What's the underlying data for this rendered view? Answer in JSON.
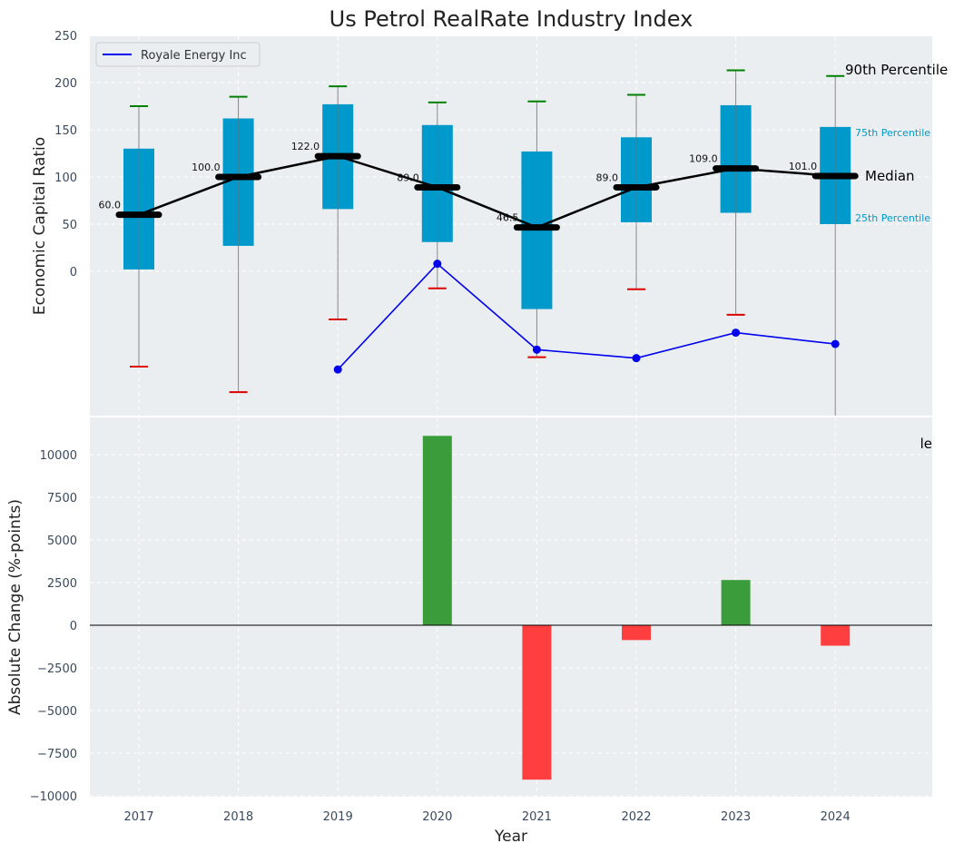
{
  "chart_data": [
    {
      "type": "boxplot",
      "title": "Us Petrol RealRate Industry Index",
      "ylabel": "Economic Capital Ratio",
      "xlabel": "",
      "yticks": [
        "0",
        "50",
        "100",
        "150",
        "200",
        "250"
      ],
      "grid": true,
      "legend": {
        "position": "top-left",
        "label": "Royale Energy Inc"
      },
      "categories": [
        "2017",
        "2018",
        "2019",
        "2020",
        "2021",
        "2022",
        "2023",
        "2024"
      ],
      "boxes": [
        {
          "year": "2017",
          "q1": 2,
          "q3": 130,
          "median": 60,
          "p10": -101,
          "p90": 175,
          "label": "60.0"
        },
        {
          "year": "2018",
          "q1": 27,
          "q3": 162,
          "median": 100,
          "p10": -128,
          "p90": 185,
          "label": "100.0"
        },
        {
          "year": "2019",
          "q1": 66,
          "q3": 177,
          "median": 122,
          "p10": -51,
          "p90": 196,
          "label": "122.0"
        },
        {
          "year": "2020",
          "q1": 31,
          "q3": 155,
          "median": 89,
          "p10": -18,
          "p90": 179,
          "label": "89.0"
        },
        {
          "year": "2021",
          "q1": -40,
          "q3": 127,
          "median": 46.5,
          "p10": -91,
          "p90": 180,
          "label": "46.5"
        },
        {
          "year": "2022",
          "q1": 52,
          "q3": 142,
          "median": 89,
          "p10": -19,
          "p90": 187,
          "label": "89.0"
        },
        {
          "year": "2023",
          "q1": 62,
          "q3": 176,
          "median": 109,
          "p10": -46,
          "p90": 213,
          "label": "109.0"
        },
        {
          "year": "2024",
          "q1": 50,
          "q3": 153,
          "median": 101,
          "p10": -155,
          "p90": 207,
          "label": "101.0"
        }
      ],
      "series": [
        {
          "name": "Royale Energy Inc",
          "x": [
            "2019",
            "2020",
            "2021",
            "2022",
            "2023",
            "2024"
          ],
          "values": [
            -104,
            8,
            -83,
            -92,
            -65,
            -77
          ]
        }
      ],
      "annotations": {
        "p90": "90th Percentile",
        "q3": "75th Percentile",
        "median": "Median",
        "q1": "25th Percentile"
      }
    },
    {
      "type": "bar",
      "xlabel": "Year",
      "ylabel": "Absolute Change (%-points)",
      "categories": [
        "2017",
        "2018",
        "2019",
        "2020",
        "2021",
        "2022",
        "2023",
        "2024"
      ],
      "values": [
        0,
        0,
        0,
        11100,
        -9050,
        -870,
        2650,
        -1200
      ],
      "ylim": [
        -10000,
        12000
      ],
      "yticks": [
        "−10000",
        "−7500",
        "−5000",
        "−2500",
        "0",
        "2500",
        "5000",
        "7500",
        "10000"
      ],
      "positive_color": "#3b9c3b",
      "negative_color": "#ff3f3f",
      "clipped_label": "le"
    }
  ],
  "colors": {
    "box": "#0099cc",
    "median": "#000000",
    "line": "#0000ee",
    "upper_whisker": "#008000",
    "lower_whisker": "#dd0000",
    "panel": "#eaeef0"
  }
}
